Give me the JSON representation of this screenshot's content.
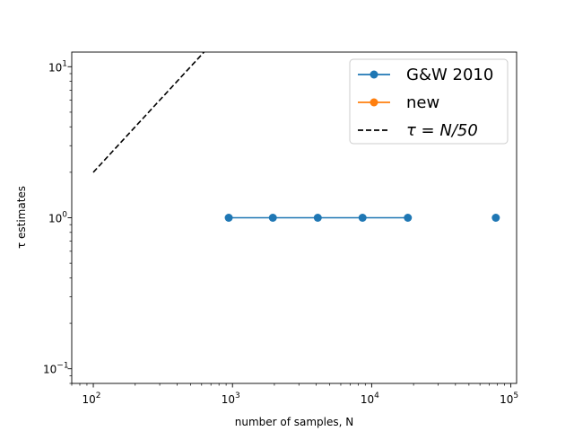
{
  "chart_data": {
    "type": "line",
    "xscale": "log",
    "yscale": "log",
    "xlim": [
      70,
      110000
    ],
    "ylim": [
      0.08,
      12.5
    ],
    "xlabel": "number of samples, N",
    "ylabel": "τ estimates",
    "x_ticks": [
      {
        "value": 100,
        "base": "10",
        "exp": "2"
      },
      {
        "value": 1000,
        "base": "10",
        "exp": "3"
      },
      {
        "value": 10000,
        "base": "10",
        "exp": "4"
      },
      {
        "value": 100000,
        "base": "10",
        "exp": "5"
      }
    ],
    "y_ticks": [
      {
        "value": 0.1,
        "base": "10",
        "exp": "−1"
      },
      {
        "value": 1,
        "base": "10",
        "exp": "0"
      },
      {
        "value": 10,
        "base": "10",
        "exp": "1"
      }
    ],
    "legend_position": "top-right",
    "grid": false,
    "series": [
      {
        "name": "G&W 2010",
        "color": "#1f77b4",
        "style": "line-marker",
        "line_x": [
          940,
          1950,
          4100,
          8600,
          18200
        ],
        "line_y": [
          1,
          1,
          1,
          1,
          1
        ],
        "x": [
          940,
          1950,
          4100,
          8600,
          18200,
          78000
        ],
        "y": [
          1,
          1,
          1,
          1,
          1,
          1
        ]
      },
      {
        "name": "new",
        "color": "#ff7f0e",
        "style": "line-marker",
        "x": [],
        "y": []
      },
      {
        "name": "τ = N/50",
        "color": "#000000",
        "style": "dashed",
        "x": [
          100,
          625
        ],
        "y": [
          2,
          12.5
        ]
      }
    ]
  }
}
